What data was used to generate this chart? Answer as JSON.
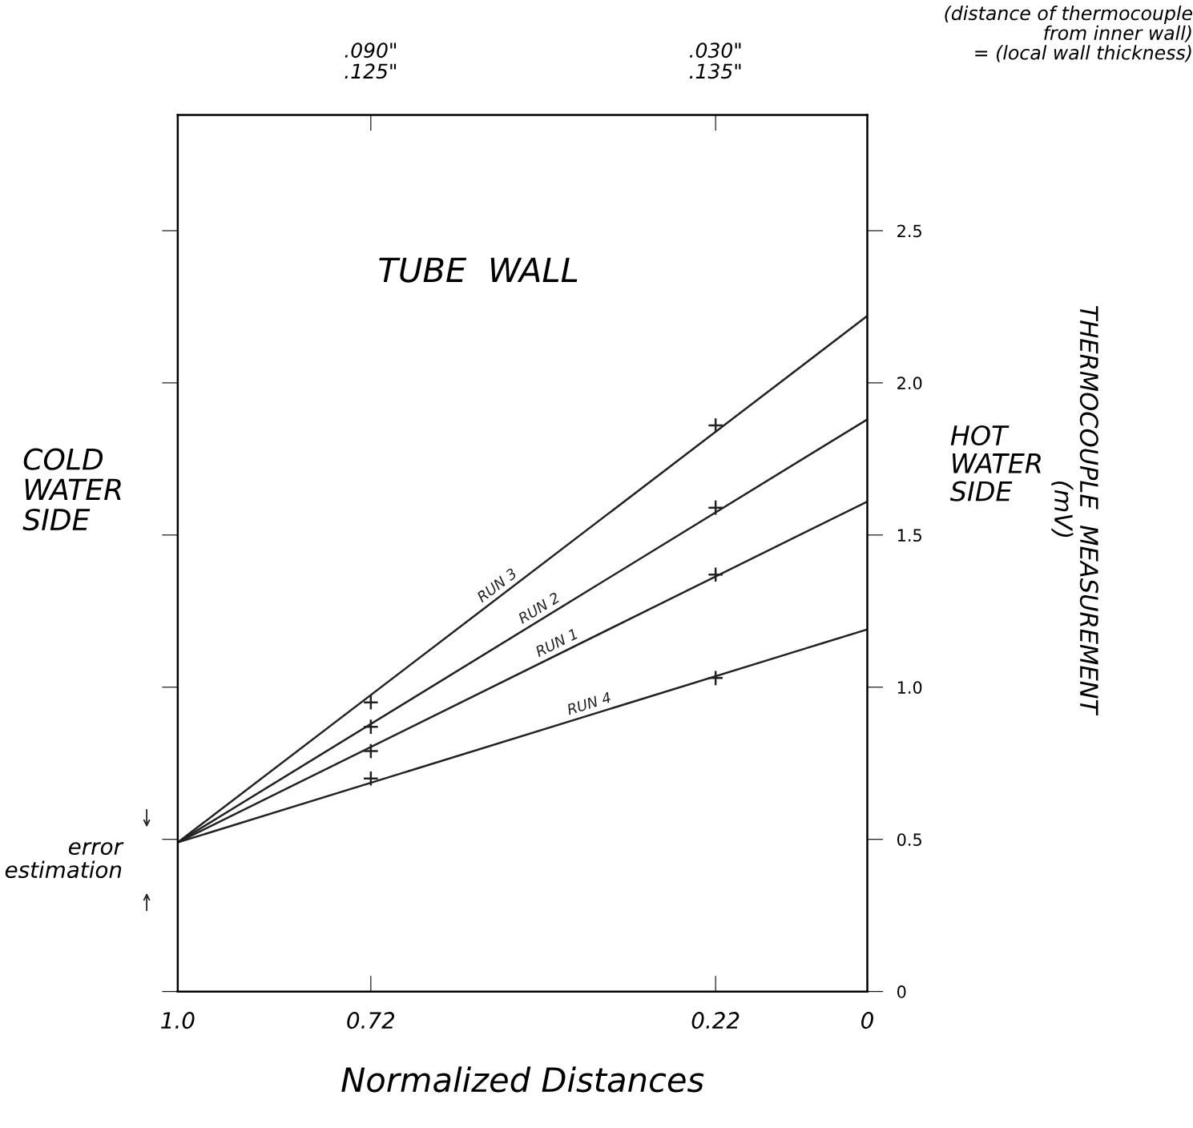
{
  "chart_data": {
    "type": "line",
    "xlabel": "Normalized Distances",
    "xlim": [
      1.0,
      0
    ],
    "xticks": [
      {
        "value": 1.0,
        "label": "1.0"
      },
      0.72,
      0.22,
      0
    ],
    "ylim": [
      0,
      2.88
    ],
    "yticks": [
      0,
      0.5,
      {
        "value": 1.0,
        "label": "1.0"
      },
      1.5,
      {
        "value": 2.0,
        "label": "2.0"
      },
      2.5
    ],
    "annotations": [
      "TUBE  WALL",
      "COLD\nWATER\nSIDE",
      "HOT\nWATER\nSIDE",
      "error\nestimation",
      ".090\"\n.125\"",
      ".030\"\n.135\"",
      "(distance of thermocouple\n from inner wall)\n= (local wall thickness)",
      "THERMOCOUPLE  MEASUREMENT\n(mV)"
    ],
    "series": [
      {
        "name": "RUN 3",
        "color": "#222222",
        "x": [
          1.0,
          0
        ],
        "values": [
          0.49,
          2.22
        ]
      },
      {
        "name": "RUN 2",
        "color": "#222222",
        "x": [
          1.0,
          0
        ],
        "values": [
          0.49,
          1.88
        ]
      },
      {
        "name": "RUN 1",
        "color": "#222222",
        "x": [
          1.0,
          0
        ],
        "values": [
          0.49,
          1.61
        ]
      },
      {
        "name": "RUN 4",
        "color": "#222222",
        "x": [
          1.0,
          0
        ],
        "values": [
          0.49,
          1.19
        ]
      },
      {
        "type": "scatter",
        "marker": "cross",
        "color": "#222222",
        "x": [
          0.72,
          0.22,
          0.72,
          0.22,
          0.72,
          0.22,
          0.72,
          0.22
        ],
        "values": [
          0.95,
          1.86,
          0.87,
          1.59,
          0.79,
          1.37,
          0.7,
          1.03
        ]
      }
    ]
  }
}
